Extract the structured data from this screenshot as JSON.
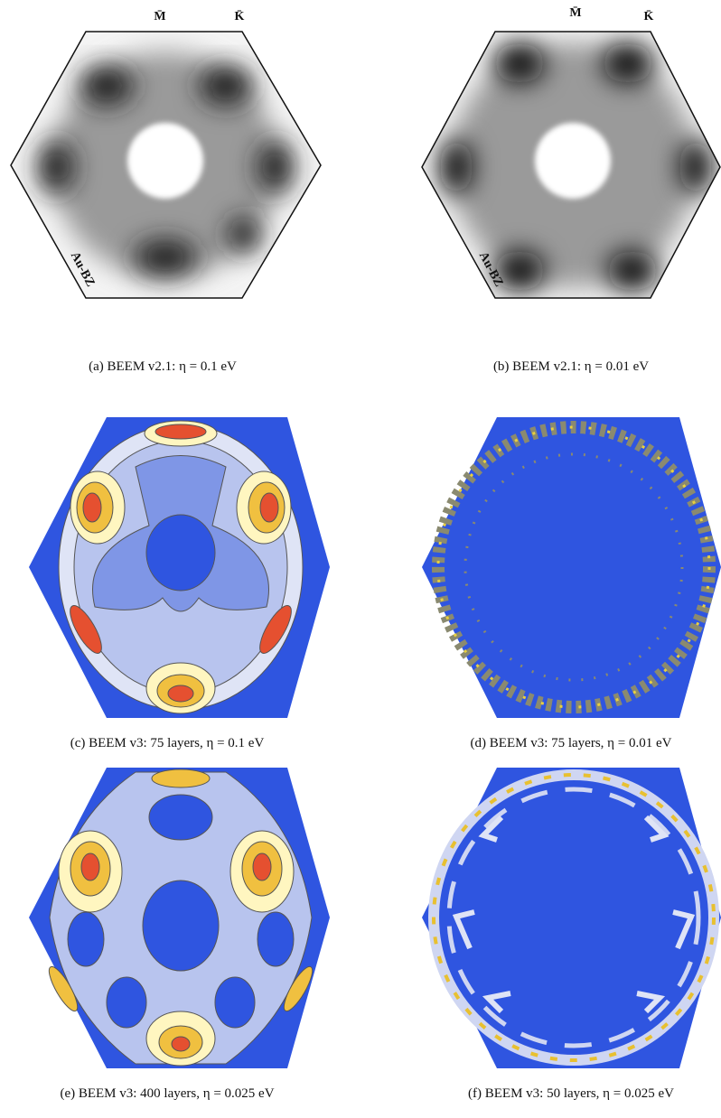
{
  "panels": [
    {
      "caption": "(a)  BEEM v2.1: η = 0.1 eV",
      "labels": {
        "m": "M̄",
        "k": "K̄",
        "zone": "Au-BZ"
      }
    },
    {
      "caption": "(b)  BEEM v2.1: η = 0.01 eV",
      "labels": {
        "m": "M̄",
        "k": "K̄",
        "zone": "Au-BZ"
      }
    },
    {
      "caption": "(c)  BEEM v3: 75 layers, η = 0.1 eV"
    },
    {
      "caption": "(d)  BEEM v3: 75 layers, η = 0.01 eV"
    },
    {
      "caption": "(e)  BEEM v3: 400 layers, η = 0.025 eV"
    },
    {
      "caption": "(f)  BEEM v3: 50 layers, η = 0.025 eV"
    }
  ]
}
